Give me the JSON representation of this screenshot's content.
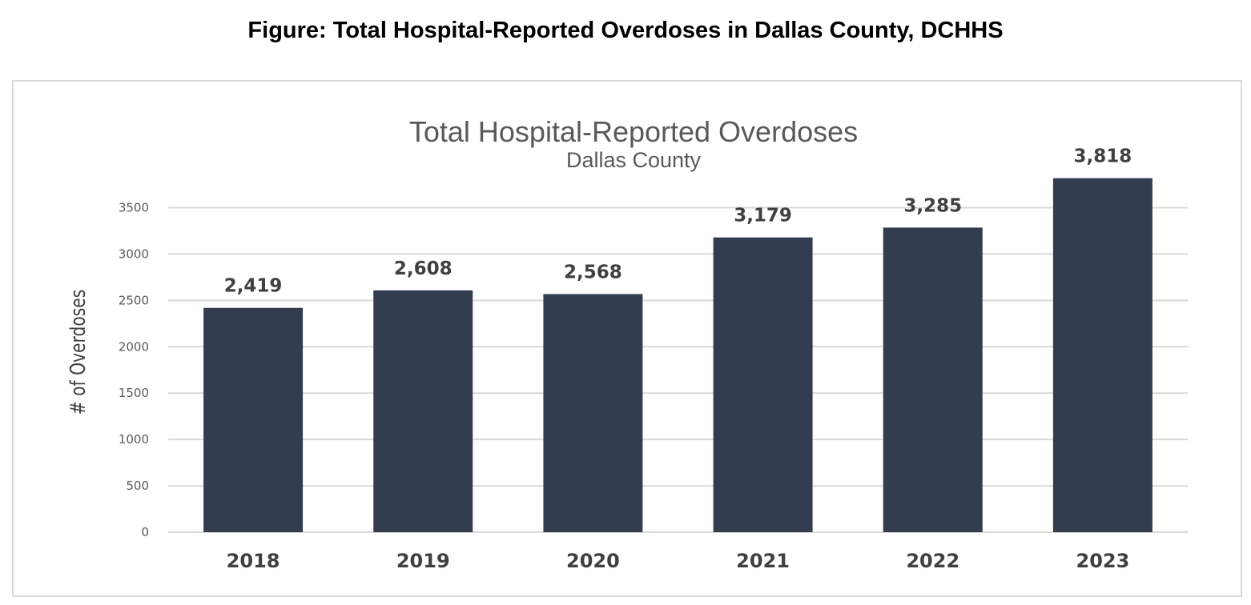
{
  "caption": "Figure: Total Hospital-Reported Overdoses in Dallas County, DCHHS",
  "chart_data": {
    "type": "bar",
    "title": "Total Hospital-Reported Overdoses",
    "subtitle": "Dallas County",
    "xlabel": "",
    "ylabel": "# of Overdoses",
    "categories": [
      "2018",
      "2019",
      "2020",
      "2021",
      "2022",
      "2023"
    ],
    "values": [
      2419,
      2608,
      2568,
      3179,
      3285,
      3818
    ],
    "data_labels": [
      "2,419",
      "2,608",
      "2,568",
      "3,179",
      "3,285",
      "3,818"
    ],
    "ylim": [
      0,
      3500
    ],
    "yticks": [
      "0",
      "500",
      "1000",
      "1500",
      "2000",
      "2500",
      "3000",
      "3500"
    ],
    "grid": true,
    "legend": "none",
    "bar_color": "#333d4f",
    "gridline_color": "#d9d9d9"
  }
}
